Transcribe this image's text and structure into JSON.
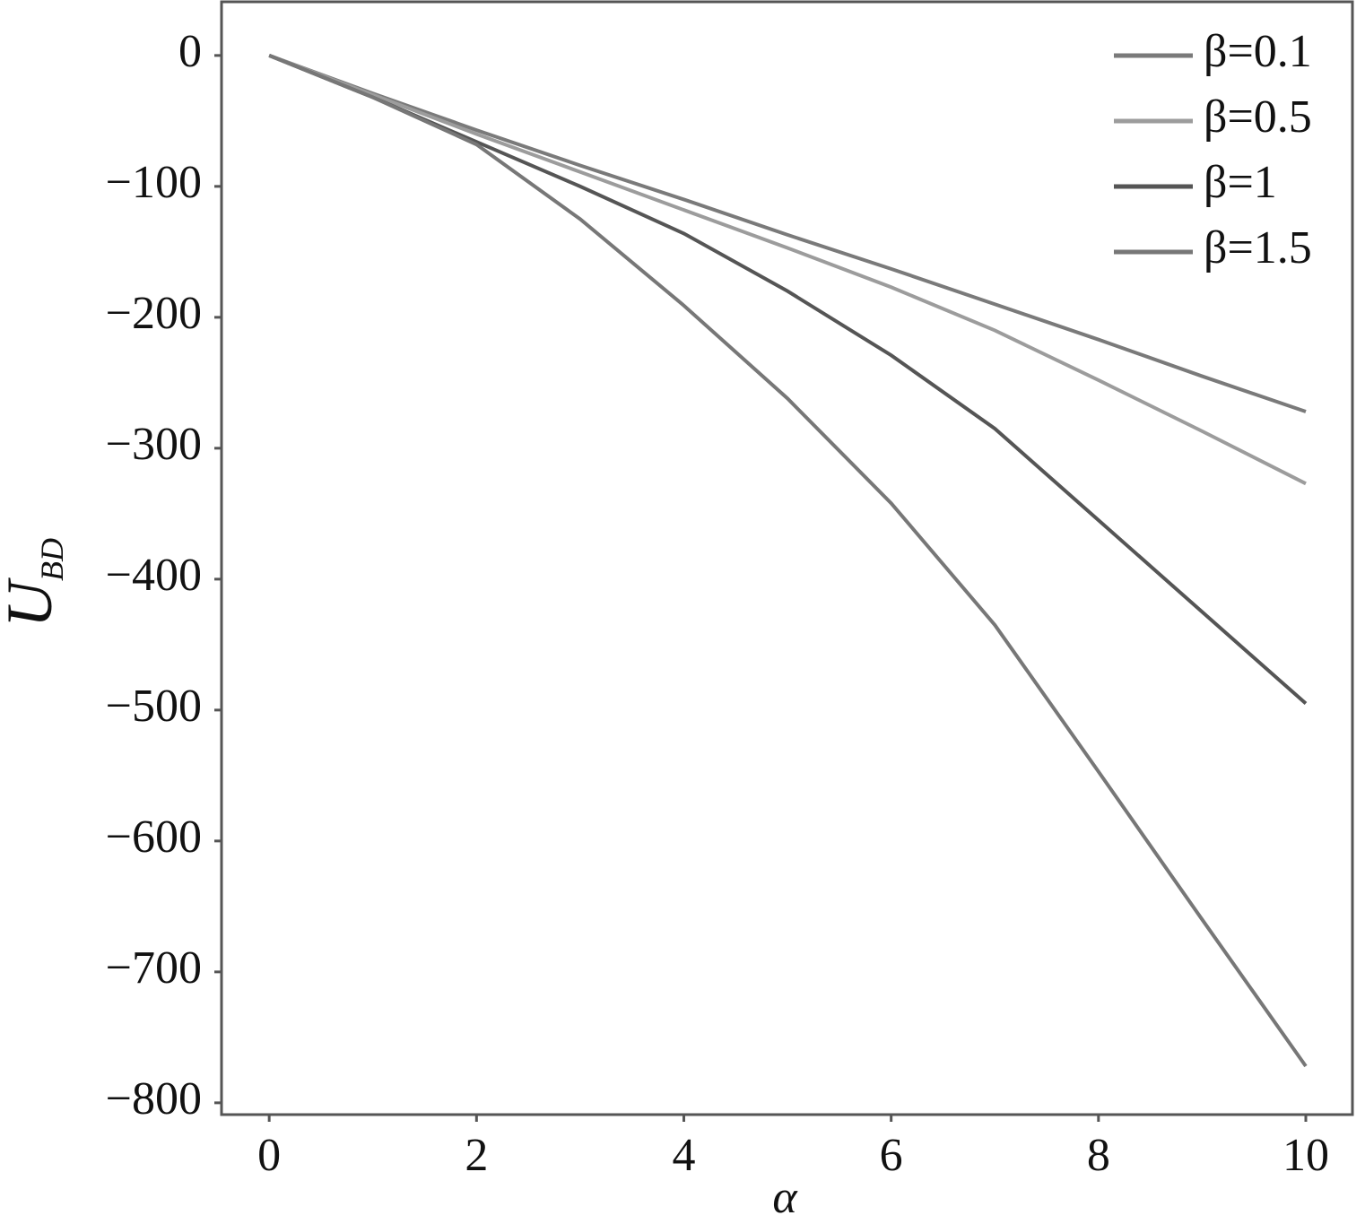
{
  "chart_data": {
    "type": "line",
    "x_label": "α",
    "y_label": {
      "main": "U",
      "sub": "BD"
    },
    "x": [
      0,
      1,
      2,
      3,
      4,
      5,
      6,
      7,
      8,
      9,
      10
    ],
    "series": [
      {
        "name": "β=0.1",
        "color": "#7a7a7a",
        "values": [
          0,
          -29,
          -57,
          -84,
          -110,
          -137,
          -163,
          -190,
          -217,
          -245,
          -272
        ]
      },
      {
        "name": "β=0.5",
        "color": "#9c9c9c",
        "values": [
          0,
          -30,
          -60,
          -89,
          -118,
          -147,
          -177,
          -210,
          -248,
          -287,
          -327
        ]
      },
      {
        "name": "β=1",
        "color": "#555555",
        "values": [
          0,
          -32,
          -66,
          -100,
          -136,
          -180,
          -229,
          -285,
          -355,
          -425,
          -495
        ]
      },
      {
        "name": "β=1.5",
        "color": "#777777",
        "values": [
          0,
          -32,
          -68,
          -125,
          -191,
          -262,
          -342,
          -435,
          -547,
          -660,
          -772
        ]
      }
    ],
    "xlim": [
      -0.46,
      10.45
    ],
    "ylim": [
      -809,
      41
    ],
    "xticks": [
      0,
      2,
      4,
      6,
      8,
      10
    ],
    "yticks": [
      0,
      {
        "value": -100,
        "label": "−100"
      },
      {
        "value": -200,
        "label": "−200"
      },
      {
        "value": -300,
        "label": "−300"
      },
      {
        "value": -400,
        "label": "−400"
      },
      {
        "value": -500,
        "label": "−500"
      },
      {
        "value": -600,
        "label": "−600"
      },
      {
        "value": -700,
        "label": "−700"
      },
      {
        "value": -800,
        "label": "−800"
      }
    ],
    "legend": "upper right"
  }
}
